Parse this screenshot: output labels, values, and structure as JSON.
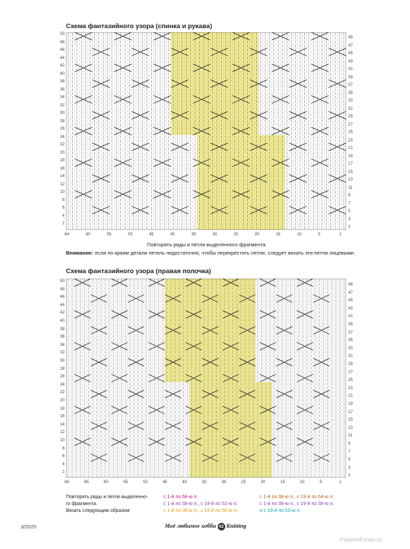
{
  "chart1": {
    "title": "Схема фантазийного узора (спинка и рукава)",
    "rows_left": [
      "50",
      "48",
      "46",
      "44",
      "42",
      "40",
      "38",
      "36",
      "34",
      "32",
      "30",
      "28",
      "26",
      "24",
      "22",
      "20",
      "18",
      "16",
      "14",
      "12",
      "10",
      "8",
      "6",
      "4",
      "2"
    ],
    "rows_right": [
      "49",
      "47",
      "45",
      "43",
      "41",
      "39",
      "37",
      "35",
      "33",
      "31",
      "29",
      "27",
      "25",
      "23",
      "21",
      "19",
      "17",
      "15",
      "13",
      "11",
      "9",
      "7",
      "5",
      "3",
      "1"
    ],
    "cols": [
      "64",
      "60",
      "55",
      "50",
      "45",
      "40",
      "35",
      "30",
      "25",
      "20",
      "15",
      "10",
      "5",
      "1"
    ],
    "repeat_note": "Повторять ряды и петли выделенного фрагмента.",
    "attention_label": "Внимание:",
    "attention_text": " если по краям детали петель недостаточно, чтобы перекрестить петли, следует вязать эти петли лицевыми."
  },
  "chart2": {
    "title": "Схема фантазийного узора (правая полочка)",
    "rows_left": [
      "50",
      "48",
      "46",
      "44",
      "42",
      "40",
      "38",
      "36",
      "34",
      "32",
      "30",
      "28",
      "26",
      "24",
      "22",
      "20",
      "18",
      "16",
      "14",
      "12",
      "10",
      "8",
      "6",
      "4",
      "2"
    ],
    "rows_right": [
      "49",
      "47",
      "45",
      "43",
      "41",
      "39",
      "37",
      "35",
      "33",
      "31",
      "29",
      "27",
      "25",
      "23",
      "21",
      "19",
      "17",
      "15",
      "13",
      "11",
      "9",
      "7",
      "5",
      "3",
      "1"
    ],
    "cols": [
      "68",
      "65",
      "60",
      "55",
      "50",
      "45",
      "40",
      "35",
      "30",
      "25",
      "20",
      "15",
      "10",
      "5",
      "1"
    ]
  },
  "legend": {
    "left_line1": "Повторять ряды и петли выделенно-",
    "left_line2": "го фрагмента.",
    "left_line3": "Вязать следующим образом:",
    "col1_line1": "с 1-й по 68-ю п.",
    "col1_line2": "с 1-й по 38-ю п., с 19-й по 52-ю п.",
    "col1_line3": "с 1-й по 38-ю п., с 19-й по 50-ю п.",
    "col2_line1": "с 1-й по 38-ю п., с 19-й по 64-ю п.",
    "col2_line2": "с 1-й по 38-ю п., с 19-й по 38-ю п.",
    "col2_line3": "и с 19-й по 53-ю п.",
    "colors": {
      "pink": "#c2188b",
      "purple": "#8e44ad",
      "orange": "#e39b12",
      "brown": "#b5651d",
      "teal": "#16a0b5",
      "highlight": "#f3ec8c"
    }
  },
  "footer": {
    "issue": "3/2025",
    "magazine": "Моё любимое хобби",
    "page": "42",
    "section": "Knitting",
    "watermark": "PassionForum.ru"
  }
}
